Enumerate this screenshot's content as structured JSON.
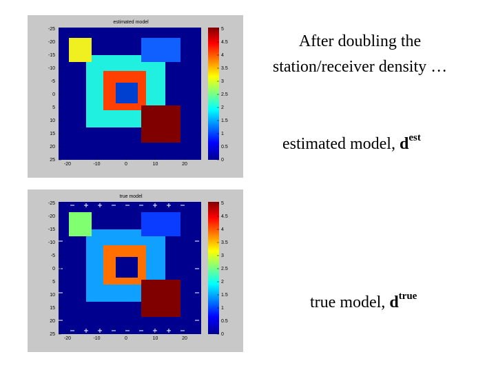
{
  "heading": [
    "After doubling the",
    "station/receiver density …"
  ],
  "captions": [
    {
      "label": "estimated model, ",
      "symbol": "d",
      "superscript": "est"
    },
    {
      "label": "true model, ",
      "symbol": "d",
      "superscript": "true"
    }
  ],
  "figures": [
    {
      "title": "estimated model",
      "xticks": [
        -20,
        -10,
        0,
        10,
        20
      ],
      "yticks": [
        -25,
        -20,
        -15,
        -10,
        -5,
        0,
        5,
        10,
        15,
        20,
        25
      ],
      "colorbar_ticks": [
        5,
        4.5,
        4,
        3.5,
        3,
        2.5,
        2,
        1.5,
        1,
        0.5,
        0
      ]
    },
    {
      "title": "true model",
      "xticks": [
        -20,
        -10,
        0,
        10,
        20
      ],
      "yticks": [
        -25,
        -20,
        -15,
        -10,
        -5,
        0,
        5,
        10,
        15,
        20,
        25
      ],
      "colorbar_ticks": [
        5,
        4.5,
        4,
        3.5,
        3,
        2.5,
        2,
        1.5,
        1,
        0.5,
        0
      ]
    }
  ]
}
